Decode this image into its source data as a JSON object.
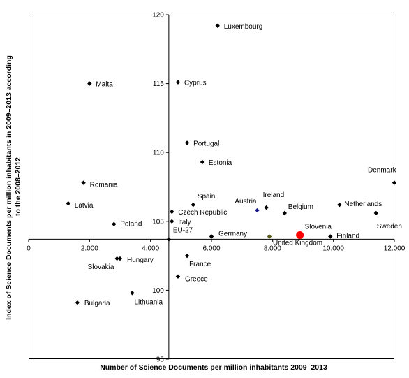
{
  "chart_data": {
    "type": "scatter",
    "xlabel": "Number of Science Documents per million inhabitants 2009–2013",
    "ylabel": [
      "Index of Science Documents per million inhabitants in 2009–2013 according",
      "to the 2008–2012"
    ],
    "xlim": [
      0,
      12000
    ],
    "ylim": [
      95,
      120
    ],
    "x_cross_y": 103.7,
    "y_cross_x": 4600,
    "grid": false,
    "legend": "none",
    "x_ticks": [
      {
        "value": 0,
        "label": "0"
      },
      {
        "value": 2000,
        "label": "2.000"
      },
      {
        "value": 4000,
        "label": "4.000"
      },
      {
        "value": 6000,
        "label": "6.000"
      },
      {
        "value": 8000,
        "label": "8.000"
      },
      {
        "value": 10000,
        "label": "10.000"
      },
      {
        "value": 12000,
        "label": "12.000"
      }
    ],
    "y_ticks": [
      {
        "value": 95,
        "label": "95"
      },
      {
        "value": 100,
        "label": "100"
      },
      {
        "value": 105,
        "label": "105"
      },
      {
        "value": 110,
        "label": "110"
      },
      {
        "value": 115,
        "label": "115"
      },
      {
        "value": 120,
        "label": "120"
      }
    ],
    "colors": {
      "default": "#000000",
      "highlight": "#ff0000",
      "austria": "#1a1a8c",
      "united_kingdom": "#5a5a1a"
    },
    "points": [
      {
        "label": "Luxembourg",
        "x": 6200,
        "y": 119.2
      },
      {
        "label": "Malta",
        "x": 2000,
        "y": 115.0
      },
      {
        "label": "Cyprus",
        "x": 4900,
        "y": 115.1
      },
      {
        "label": "Portugal",
        "x": 5200,
        "y": 110.7
      },
      {
        "label": "Estonia",
        "x": 5700,
        "y": 109.3
      },
      {
        "label": "Romania",
        "x": 1800,
        "y": 107.8
      },
      {
        "label": "Latvia",
        "x": 1300,
        "y": 106.3
      },
      {
        "label": "Spain",
        "x": 5400,
        "y": 106.2
      },
      {
        "label": "Czech Republic",
        "x": 4700,
        "y": 105.7
      },
      {
        "label": "Italy",
        "x": 4700,
        "y": 105.0
      },
      {
        "label": "Poland",
        "x": 2800,
        "y": 104.8
      },
      {
        "label": "EU-27",
        "x": 4600,
        "y": 103.7
      },
      {
        "label": "Germany",
        "x": 6000,
        "y": 103.9
      },
      {
        "label": "Austria",
        "x": 7500,
        "y": 105.8,
        "color": "austria"
      },
      {
        "label": "Ireland",
        "x": 7800,
        "y": 106.0
      },
      {
        "label": "Belgium",
        "x": 8400,
        "y": 105.6
      },
      {
        "label": "United Kingdom",
        "x": 7900,
        "y": 103.9,
        "color": "united_kingdom"
      },
      {
        "label": "Slovenia",
        "x": 8900,
        "y": 104.0,
        "highlight": true
      },
      {
        "label": "Finland",
        "x": 9900,
        "y": 103.9
      },
      {
        "label": "Netherlands",
        "x": 10200,
        "y": 106.2
      },
      {
        "label": "Sweden",
        "x": 11400,
        "y": 105.6
      },
      {
        "label": "Denmark",
        "x": 12000,
        "y": 107.8
      },
      {
        "label": "France",
        "x": 5200,
        "y": 102.5
      },
      {
        "label": "Hungary",
        "x": 3000,
        "y": 102.3
      },
      {
        "label": "Slovakia",
        "x": 2900,
        "y": 102.3
      },
      {
        "label": "Greece",
        "x": 4900,
        "y": 101.0
      },
      {
        "label": "Lithuania",
        "x": 3400,
        "y": 99.8
      },
      {
        "label": "Bulgaria",
        "x": 1600,
        "y": 99.1
      }
    ]
  }
}
